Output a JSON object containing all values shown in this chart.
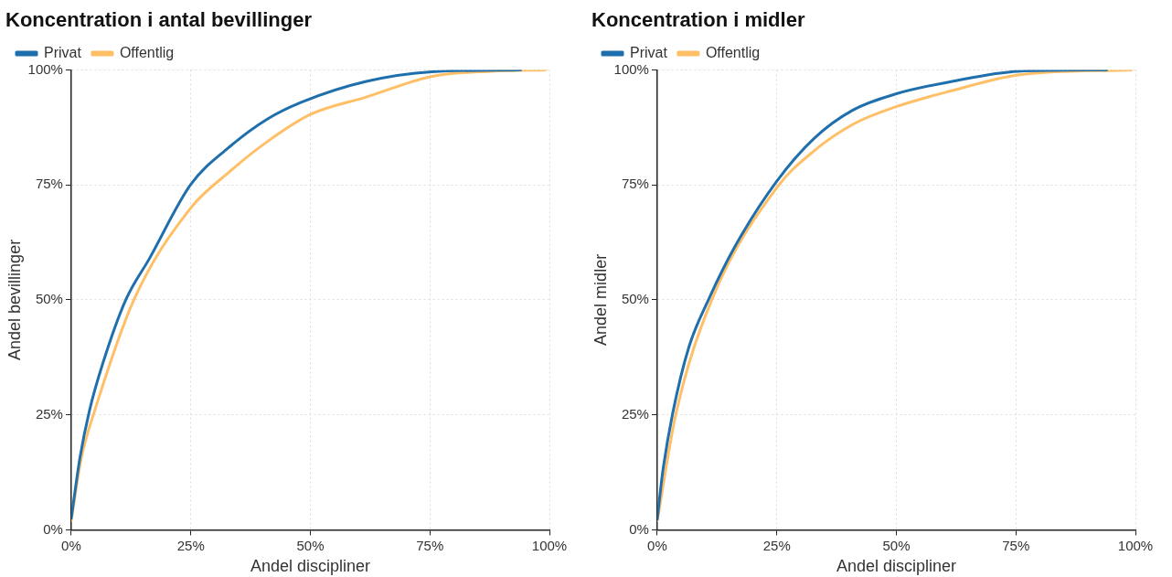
{
  "chart_data": [
    {
      "type": "line",
      "title": "Koncentration i antal bevillinger",
      "xlabel": "Andel discipliner",
      "ylabel": "Andel bevillinger",
      "xlim": [
        0,
        100
      ],
      "ylim": [
        0,
        100
      ],
      "xticks": [
        {
          "value": 0,
          "label": "0%"
        },
        {
          "value": 25,
          "label": "25%"
        },
        {
          "value": 50,
          "label": "50%"
        },
        {
          "value": 75,
          "label": "75%"
        },
        {
          "value": 100,
          "label": "100%"
        }
      ],
      "yticks": [
        {
          "value": 0,
          "label": "0%"
        },
        {
          "value": 25,
          "label": "25%"
        },
        {
          "value": 50,
          "label": "50%"
        },
        {
          "value": 75,
          "label": "75%"
        },
        {
          "value": 100,
          "label": "100%"
        }
      ],
      "grid": true,
      "legend": "top left",
      "marker": "none",
      "line_style": "solid",
      "series": [
        {
          "name": "Privat",
          "color": "#1f6fad",
          "x": [
            0,
            1.8,
            3.8,
            6.6,
            11.4,
            16.3,
            25,
            32.8,
            41,
            48.2,
            61.7,
            75.5,
            94
          ],
          "values": [
            2.5,
            15.6,
            25.9,
            36.2,
            50,
            58.9,
            75.1,
            83,
            89.3,
            93,
            97.5,
            99.6,
            100
          ]
        },
        {
          "name": "Offentlig",
          "color": "#ffbf66",
          "x": [
            0,
            2.1,
            4.9,
            13.1,
            25,
            32.8,
            41,
            50,
            61.7,
            75.5,
            87.8,
            99.2
          ],
          "values": [
            2,
            15.6,
            25.9,
            50,
            70,
            77.6,
            84.4,
            90.3,
            94.1,
            98.6,
            99.7,
            100
          ]
        }
      ]
    },
    {
      "type": "line",
      "title": "Koncentration i midler",
      "xlabel": "Andel discipliner",
      "ylabel": "Andel midler",
      "xlim": [
        0,
        100
      ],
      "ylim": [
        0,
        100
      ],
      "xticks": [
        {
          "value": 0,
          "label": "0%"
        },
        {
          "value": 25,
          "label": "25%"
        },
        {
          "value": 50,
          "label": "50%"
        },
        {
          "value": 75,
          "label": "75%"
        },
        {
          "value": 100,
          "label": "100%"
        }
      ],
      "yticks": [
        {
          "value": 0,
          "label": "0%"
        },
        {
          "value": 25,
          "label": "25%"
        },
        {
          "value": 50,
          "label": "50%"
        },
        {
          "value": 75,
          "label": "75%"
        },
        {
          "value": 100,
          "label": "100%"
        }
      ],
      "grid": true,
      "legend": "top left",
      "marker": "none",
      "line_style": "solid",
      "series": [
        {
          "name": "Privat",
          "color": "#1f6fad",
          "x": [
            0,
            1.1,
            3.2,
            6.6,
            10.7,
            16.3,
            25,
            32.8,
            41,
            50,
            61.7,
            75.5,
            94
          ],
          "values": [
            2.3,
            12.3,
            25.2,
            39.7,
            50,
            61.7,
            75.8,
            85.1,
            91.3,
            94.8,
            97.5,
            99.7,
            100
          ]
        },
        {
          "name": "Offentlig",
          "color": "#ffbf66",
          "x": [
            0,
            3.9,
            11.4,
            25,
            32.8,
            41,
            50,
            61.7,
            75.5,
            99.2
          ],
          "values": [
            2,
            25.2,
            50,
            74.4,
            82.4,
            88.2,
            92,
            95.5,
            98.9,
            100
          ]
        }
      ]
    }
  ]
}
